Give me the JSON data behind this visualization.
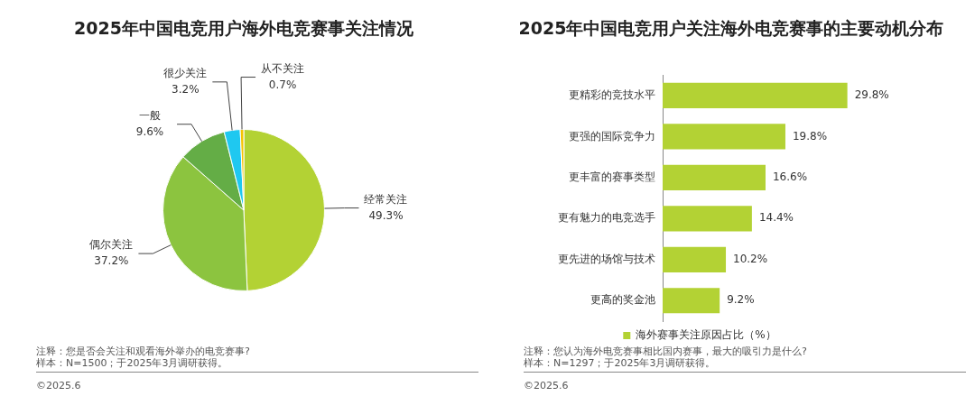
{
  "chart_data": [
    {
      "type": "pie",
      "title": "2025年中国电竞用户海外电竞赛事关注情况",
      "categories": [
        "经常关注",
        "偶尔关注",
        "一般",
        "很少关注",
        "从不关注"
      ],
      "values": [
        49.3,
        37.2,
        9.6,
        3.2,
        0.7
      ],
      "colors": [
        "#b3d234",
        "#8cc43f",
        "#64ad46",
        "#1fc8f0",
        "#f5c400"
      ],
      "value_labels": [
        "49.3%",
        "37.2%",
        "9.6%",
        "3.2%",
        "0.7%"
      ],
      "legend": false,
      "annotations": [
        "注释：您是否会关注和观看海外举办的电竞赛事?",
        "样本：N=1500；于2025年3月调研获得。",
        "©2025.6"
      ]
    },
    {
      "type": "bar",
      "orientation": "horizontal",
      "title": "2025年中国电竞用户关注海外电竞赛事的主要动机分布",
      "categories": [
        "更精彩的竞技水平",
        "更强的国际竞争力",
        "更丰富的赛事类型",
        "更有魅力的电竞选手",
        "更先进的场馆与技术",
        "更高的奖金池"
      ],
      "series": [
        {
          "name": "海外赛事关注原因占比（%）",
          "color": "#b3d234",
          "values": [
            29.8,
            19.8,
            16.6,
            14.4,
            10.2,
            9.2
          ],
          "value_labels": [
            "29.8%",
            "19.8%",
            "16.6%",
            "14.4%",
            "10.2%",
            "9.2%"
          ]
        }
      ],
      "legend": "bottom",
      "annotations": [
        "注释：您认为海外电竞赛事相比国内赛事，最大的吸引力是什么?",
        "样本：N=1297；于2025年3月调研获得。",
        "©2025.6"
      ]
    }
  ]
}
